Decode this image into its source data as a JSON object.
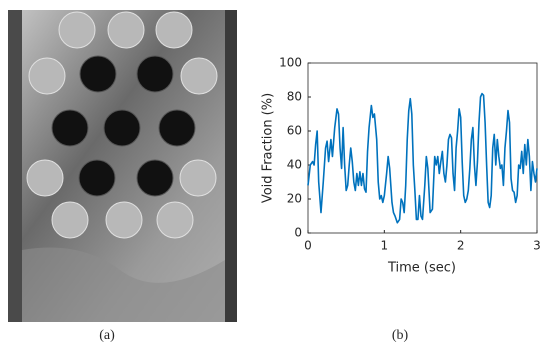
{
  "panel_labels": [
    "(a)",
    "(b)"
  ],
  "chart_data": {
    "type": "line",
    "x_label": "Time (sec)",
    "y_label": "Void Fraction (%)",
    "color": "#0072bd",
    "xlim": [
      0,
      3
    ],
    "xticks": [
      0,
      1,
      2,
      3
    ],
    "ylim": [
      0,
      100
    ],
    "yticks": [
      0,
      20,
      40,
      60,
      80,
      100
    ],
    "grid": false,
    "x": [
      0,
      0.03,
      0.06,
      0.08,
      0.1,
      0.12,
      0.14,
      0.17,
      0.2,
      0.23,
      0.25,
      0.27,
      0.3,
      0.32,
      0.35,
      0.38,
      0.4,
      0.42,
      0.44,
      0.46,
      0.48,
      0.5,
      0.52,
      0.54,
      0.56,
      0.58,
      0.6,
      0.62,
      0.64,
      0.66,
      0.68,
      0.7,
      0.72,
      0.74,
      0.76,
      0.78,
      0.8,
      0.83,
      0.85,
      0.87,
      0.9,
      0.92,
      0.94,
      0.96,
      0.98,
      1.0,
      1.03,
      1.05,
      1.07,
      1.1,
      1.12,
      1.14,
      1.17,
      1.2,
      1.22,
      1.24,
      1.26,
      1.28,
      1.3,
      1.32,
      1.34,
      1.36,
      1.38,
      1.4,
      1.42,
      1.44,
      1.46,
      1.48,
      1.5,
      1.53,
      1.55,
      1.57,
      1.6,
      1.63,
      1.66,
      1.68,
      1.7,
      1.72,
      1.74,
      1.76,
      1.78,
      1.8,
      1.82,
      1.84,
      1.86,
      1.88,
      1.9,
      1.92,
      1.94,
      1.96,
      1.98,
      2.0,
      2.02,
      2.04,
      2.06,
      2.08,
      2.1,
      2.12,
      2.14,
      2.16,
      2.18,
      2.2,
      2.22,
      2.24,
      2.26,
      2.28,
      2.3,
      2.32,
      2.34,
      2.36,
      2.38,
      2.4,
      2.42,
      2.44,
      2.46,
      2.48,
      2.5,
      2.52,
      2.54,
      2.56,
      2.58,
      2.6,
      2.62,
      2.64,
      2.66,
      2.68,
      2.7,
      2.72,
      2.74,
      2.76,
      2.78,
      2.8,
      2.82,
      2.84,
      2.86,
      2.88,
      2.9,
      2.92,
      2.94,
      2.96,
      2.98,
      3.0
    ],
    "values": [
      28,
      40,
      42,
      40,
      52,
      60,
      30,
      12,
      30,
      50,
      54,
      42,
      55,
      45,
      62,
      73,
      70,
      50,
      38,
      62,
      40,
      25,
      28,
      40,
      50,
      42,
      30,
      25,
      35,
      28,
      36,
      28,
      35,
      26,
      24,
      48,
      62,
      75,
      68,
      70,
      55,
      30,
      20,
      22,
      18,
      22,
      35,
      45,
      38,
      18,
      12,
      10,
      6,
      8,
      20,
      18,
      12,
      28,
      55,
      72,
      79,
      70,
      40,
      25,
      8,
      8,
      22,
      10,
      8,
      28,
      45,
      38,
      12,
      14,
      45,
      40,
      45,
      35,
      42,
      48,
      35,
      30,
      40,
      55,
      58,
      56,
      35,
      25,
      50,
      60,
      73,
      68,
      42,
      22,
      18,
      20,
      25,
      38,
      55,
      62,
      40,
      28,
      42,
      65,
      80,
      82,
      81,
      65,
      40,
      18,
      15,
      22,
      50,
      58,
      40,
      55,
      45,
      38,
      40,
      28,
      50,
      60,
      72,
      65,
      32,
      25,
      24,
      18,
      22,
      40,
      38,
      48,
      35,
      52,
      40,
      55,
      45,
      25,
      42,
      35,
      30,
      38
    ]
  }
}
